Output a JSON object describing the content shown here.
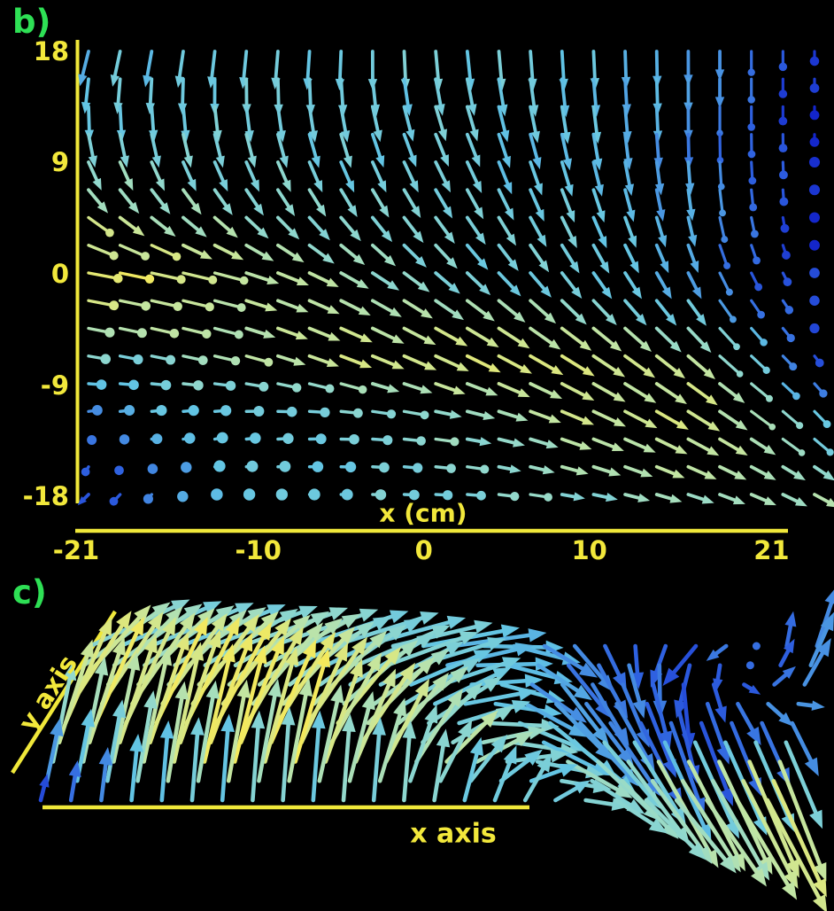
{
  "figure": {
    "background": "#000000",
    "colors": {
      "axis_text": "#f2e83b",
      "axis_line": "#f0e83a",
      "panel_label": "#2ee055"
    },
    "panels": {
      "b": {
        "label": "b)",
        "xlabel": "x (cm)"
      },
      "c": {
        "label": "c)",
        "xlabel": "x axis",
        "ylabel": "y axis"
      }
    }
  },
  "chart_data": [
    {
      "panel": "b",
      "type": "quiver",
      "view": "top-down x-y plane of 3D vector field",
      "xlabel": "x (cm)",
      "xlim": [
        -21,
        21
      ],
      "ylim": [
        -18,
        18
      ],
      "xticks": [
        -21,
        -10,
        0,
        10,
        21
      ],
      "yticks": [
        18,
        9,
        0,
        -9,
        -18
      ],
      "grid": {
        "cols": 24,
        "rows": 17
      },
      "control_x": [
        -21,
        -14,
        -7,
        0,
        7,
        14,
        21
      ],
      "control_y": [
        18,
        12,
        6,
        0,
        -6,
        -12,
        -18
      ],
      "u": [
        [
          -0.2,
          -0.1,
          -0.05,
          0.1,
          0.05,
          0.0,
          0.0
        ],
        [
          0.1,
          0.15,
          0.2,
          0.3,
          0.15,
          0.0,
          0.0
        ],
        [
          0.5,
          0.45,
          0.4,
          0.4,
          0.3,
          0.1,
          0.0
        ],
        [
          0.8,
          0.8,
          0.65,
          0.55,
          0.45,
          0.3,
          0.05
        ],
        [
          0.5,
          0.6,
          0.75,
          0.8,
          0.75,
          0.6,
          0.1
        ],
        [
          0.2,
          0.25,
          0.4,
          0.6,
          0.75,
          0.75,
          0.35
        ],
        [
          -0.25,
          0.05,
          0.15,
          0.35,
          0.55,
          0.6,
          0.55
        ]
      ],
      "v": [
        [
          -0.8,
          -0.85,
          -0.9,
          -0.9,
          -0.9,
          -0.8,
          -0.25
        ],
        [
          -0.8,
          -0.8,
          -0.8,
          -0.75,
          -0.85,
          -0.8,
          -0.2
        ],
        [
          -0.5,
          -0.55,
          -0.6,
          -0.65,
          -0.75,
          -0.7,
          -0.15
        ],
        [
          -0.15,
          -0.2,
          -0.35,
          -0.5,
          -0.6,
          -0.6,
          -0.1
        ],
        [
          -0.1,
          -0.15,
          -0.3,
          -0.4,
          -0.5,
          -0.55,
          -0.15
        ],
        [
          0.05,
          0.05,
          0.0,
          -0.1,
          -0.3,
          -0.45,
          -0.35
        ],
        [
          -0.25,
          0.0,
          0.0,
          -0.02,
          -0.1,
          -0.2,
          -0.3
        ]
      ],
      "w": [
        [
          0.0,
          0.0,
          0.0,
          0.0,
          0.0,
          -0.15,
          -0.8
        ],
        [
          0.05,
          0.0,
          0.0,
          0.0,
          0.0,
          -0.2,
          -0.85
        ],
        [
          0.3,
          0.15,
          0.0,
          0.0,
          0.0,
          -0.25,
          -0.85
        ],
        [
          0.45,
          0.35,
          0.1,
          0.0,
          -0.05,
          -0.3,
          -0.8
        ],
        [
          0.55,
          0.4,
          0.15,
          0.0,
          -0.1,
          -0.25,
          -0.7
        ],
        [
          0.6,
          0.7,
          0.55,
          0.3,
          0.0,
          -0.15,
          -0.5
        ],
        [
          0.2,
          0.8,
          0.75,
          0.5,
          0.25,
          0.1,
          -0.2
        ]
      ],
      "speed": [
        [
          0.45,
          0.5,
          0.5,
          0.5,
          0.45,
          0.35,
          0.08
        ],
        [
          0.55,
          0.5,
          0.5,
          0.5,
          0.45,
          0.3,
          0.06
        ],
        [
          0.75,
          0.65,
          0.55,
          0.5,
          0.5,
          0.35,
          0.05
        ],
        [
          0.95,
          0.85,
          0.7,
          0.55,
          0.5,
          0.3,
          0.08
        ],
        [
          0.6,
          0.7,
          0.85,
          0.9,
          0.85,
          0.75,
          0.15
        ],
        [
          0.3,
          0.45,
          0.55,
          0.65,
          0.8,
          0.9,
          0.5
        ],
        [
          0.1,
          0.45,
          0.5,
          0.55,
          0.6,
          0.65,
          0.7
        ]
      ]
    },
    {
      "panel": "c",
      "type": "quiver",
      "view": "oblique 3D view of same vector field, rising flow left, sinking flow right",
      "xlabel": "x axis",
      "ylabel": "y axis",
      "grid": {
        "cols": 25,
        "rows": 9
      },
      "control_x": [
        -21,
        -14,
        -7,
        0,
        7,
        14,
        21
      ],
      "control_y": [
        18,
        9,
        0,
        -9,
        -18
      ],
      "u": [
        [
          0.75,
          0.8,
          0.8,
          0.7,
          0.3,
          -0.25,
          0.15
        ],
        [
          0.55,
          0.6,
          0.65,
          0.6,
          0.35,
          0.05,
          0.2
        ],
        [
          0.35,
          0.4,
          0.45,
          0.55,
          0.5,
          0.25,
          0.2
        ],
        [
          0.15,
          0.2,
          0.25,
          0.35,
          0.5,
          0.45,
          0.35
        ],
        [
          0.05,
          0.05,
          0.05,
          0.05,
          0.2,
          0.45,
          0.45
        ]
      ],
      "w": [
        [
          0.35,
          0.3,
          0.25,
          0.1,
          -0.35,
          -0.3,
          0.45
        ],
        [
          0.6,
          0.55,
          0.45,
          0.2,
          -0.45,
          -0.5,
          0.35
        ],
        [
          0.8,
          0.8,
          0.65,
          0.35,
          -0.4,
          -0.7,
          -0.4
        ],
        [
          0.75,
          0.9,
          0.85,
          0.55,
          -0.1,
          -0.8,
          -0.9
        ],
        [
          0.2,
          0.6,
          0.7,
          0.6,
          0.35,
          -0.45,
          -0.85
        ]
      ],
      "speed": [
        [
          0.55,
          0.55,
          0.5,
          0.45,
          0.3,
          0.2,
          0.25
        ],
        [
          0.8,
          0.75,
          0.6,
          0.5,
          0.3,
          0.15,
          0.3
        ],
        [
          0.9,
          0.95,
          0.9,
          0.6,
          0.45,
          0.2,
          0.3
        ],
        [
          0.6,
          0.9,
          0.95,
          0.75,
          0.55,
          0.7,
          0.8
        ],
        [
          0.15,
          0.5,
          0.55,
          0.55,
          0.5,
          0.55,
          0.85
        ]
      ]
    }
  ],
  "colormap": [
    [
      0.0,
      "#1120c8"
    ],
    [
      0.2,
      "#2f62e0"
    ],
    [
      0.45,
      "#62c4e4"
    ],
    [
      0.62,
      "#93d9cc"
    ],
    [
      0.78,
      "#c3e5a2"
    ],
    [
      1.0,
      "#f4e95c"
    ]
  ]
}
